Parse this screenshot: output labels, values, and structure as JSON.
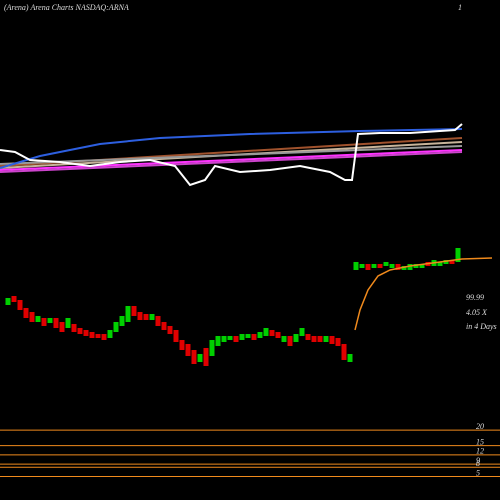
{
  "chart_data": {
    "type": "candlestick",
    "title": "(Arena) Arena Charts NASDAQ:ARNA",
    "corner_label": "1",
    "up_color": "#00d000",
    "down_color": "#e00000",
    "xlim": [
      0,
      500
    ],
    "ylim": [
      0,
      17
    ],
    "x": [
      8,
      14,
      20,
      26,
      32,
      38,
      44,
      50,
      56,
      62,
      68,
      74,
      80,
      86,
      92,
      98,
      104,
      110,
      116,
      122,
      128,
      134,
      140,
      146,
      152,
      158,
      164,
      170,
      176,
      182,
      188,
      194,
      200,
      206,
      212,
      218,
      224,
      230,
      236,
      242,
      248,
      254,
      260,
      266,
      272,
      278,
      284,
      290,
      296,
      302,
      308,
      314,
      320,
      326,
      332,
      338,
      344,
      350,
      356,
      362,
      368,
      374,
      380,
      386,
      392,
      398,
      404,
      410,
      416,
      422,
      428,
      434,
      440,
      446,
      452,
      458
    ],
    "open": [
      9.5,
      10.4,
      10.0,
      9.2,
      8.8,
      7.8,
      8.2,
      7.7,
      8.2,
      7.8,
      7.2,
      7.6,
      7.2,
      7.0,
      6.8,
      6.6,
      6.6,
      6.2,
      6.8,
      7.4,
      7.8,
      9.4,
      8.8,
      8.6,
      8.0,
      8.4,
      7.8,
      7.4,
      7.0,
      6.0,
      5.6,
      5.0,
      3.8,
      5.2,
      4.4,
      5.4,
      5.8,
      6.0,
      6.4,
      6.0,
      6.2,
      6.6,
      6.2,
      6.4,
      7.0,
      6.8,
      5.8,
      6.4,
      5.8,
      6.4,
      6.6,
      6.4,
      6.4,
      5.8,
      6.4,
      6.2,
      5.6,
      3.8,
      13.0,
      13.2,
      13.6,
      13.2,
      13.6,
      13.4,
      13.2,
      13.6,
      13.0,
      13.0,
      13.2,
      13.2,
      13.8,
      13.4,
      13.4,
      13.6,
      14.0,
      13.8
    ],
    "close": [
      10.2,
      9.8,
      9.0,
      8.2,
      7.8,
      8.4,
      7.4,
      8.2,
      7.2,
      6.8,
      8.2,
      6.8,
      6.6,
      6.4,
      6.2,
      6.2,
      6.0,
      7.0,
      7.8,
      8.4,
      9.4,
      8.4,
      8.0,
      8.0,
      8.6,
      7.4,
      7.0,
      6.6,
      5.8,
      5.0,
      4.4,
      3.6,
      4.6,
      3.4,
      6.0,
      6.4,
      6.4,
      6.4,
      5.8,
      6.6,
      6.6,
      6.0,
      6.8,
      7.2,
      6.4,
      6.2,
      6.4,
      5.4,
      6.6,
      7.2,
      6.0,
      5.8,
      5.8,
      6.4,
      5.6,
      5.4,
      4.0,
      4.6,
      13.8,
      13.6,
      13.0,
      13.6,
      13.2,
      13.8,
      13.6,
      13.0,
      13.4,
      13.6,
      13.6,
      13.6,
      13.4,
      14.0,
      13.8,
      14.0,
      13.6,
      15.2
    ],
    "overlay_lines": [
      {
        "color": "#f08a1c",
        "x": [
          355,
          360,
          368,
          378,
          390,
          410,
          440,
          462,
          492
        ],
        "values": [
          7.0,
          9.0,
          11.0,
          12.4,
          13.0,
          13.4,
          13.8,
          14.1,
          14.2
        ]
      }
    ],
    "indicator": {
      "ylim": [
        0,
        10
      ],
      "series": [
        {
          "color": "#c8b49a",
          "x": [
            0,
            462
          ],
          "values": [
            3.2,
            5.8
          ]
        },
        {
          "color": "#a0522d",
          "x": [
            0,
            462
          ],
          "values": [
            3.4,
            6.2
          ]
        },
        {
          "color": "#999999",
          "x": [
            0,
            462
          ],
          "values": [
            3.6,
            5.4
          ]
        },
        {
          "color": "#ff33ff",
          "x": [
            0,
            462
          ],
          "values": [
            3.0,
            5.0
          ]
        },
        {
          "color": "#cc44cc",
          "x": [
            0,
            462
          ],
          "values": [
            2.8,
            4.8
          ]
        },
        {
          "color": "#2d5fe0",
          "x": [
            0,
            40,
            100,
            160,
            250,
            360,
            462
          ],
          "values": [
            3.2,
            4.4,
            5.6,
            6.2,
            6.6,
            6.9,
            7.1
          ]
        },
        {
          "color": "#ffffff",
          "x": [
            0,
            15,
            30,
            60,
            90,
            120,
            150,
            175,
            190,
            205,
            215,
            240,
            270,
            300,
            330,
            345,
            352,
            358,
            380,
            410,
            440,
            455,
            462
          ],
          "values": [
            5.0,
            4.8,
            4.0,
            3.8,
            3.4,
            3.8,
            4.0,
            3.4,
            1.5,
            2.0,
            3.4,
            2.8,
            3.0,
            3.4,
            2.8,
            2.0,
            2.0,
            6.6,
            6.7,
            6.7,
            6.9,
            7.0,
            7.6
          ]
        }
      ]
    },
    "annotations": [
      "99.99",
      "4.05 X",
      "in 4 Days"
    ],
    "levels": {
      "color": "#f08a1c",
      "lim": [
        0,
        22
      ],
      "values": [
        20,
        15,
        12,
        9,
        8,
        5
      ]
    }
  }
}
